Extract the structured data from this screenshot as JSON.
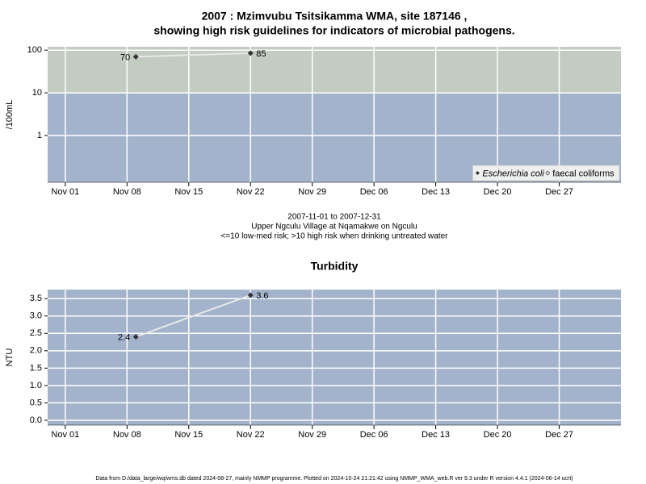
{
  "chart_data": [
    {
      "type": "line",
      "title": "2007 : Mzimvubu Tsitsikamma WMA, site 187146 ,",
      "subtitle": "showing high risk guidelines for indicators of microbial pathogens.",
      "ylabel": "/100mL",
      "notes": [
        "2007-11-01 to 2007-12-31",
        "Upper Ngculu Village at Nqamakwe on Ngculu",
        "<=10 low-med risk; >10 high risk when drinking untreated water"
      ],
      "x": [
        "2007-11-09",
        "2007-11-22"
      ],
      "series": [
        {
          "name": "Escherichia coli",
          "color": "#333333",
          "line_color": "#e8e8e8",
          "values": [
            70,
            85
          ]
        },
        {
          "name": "faecal coliforms",
          "color": "#333333",
          "line_color": "#e8e8e8",
          "values": [
            null,
            null
          ]
        }
      ],
      "log_y": true,
      "ylim": [
        0.08,
        120
      ],
      "yticks": [
        1,
        10,
        100
      ],
      "threshold": 10,
      "background": "#a3b3cc",
      "high_risk_color": "#c2ccc0",
      "xlim": [
        "2007-10-30",
        "2008-01-03"
      ],
      "xticks": [
        {
          "value": "2007-11-01",
          "label": "Nov 01"
        },
        {
          "value": "2007-11-08",
          "label": "Nov 08"
        },
        {
          "value": "2007-11-15",
          "label": "Nov 15"
        },
        {
          "value": "2007-11-22",
          "label": "Nov 22"
        },
        {
          "value": "2007-11-29",
          "label": "Nov 29"
        },
        {
          "value": "2007-12-06",
          "label": "Dec 06"
        },
        {
          "value": "2007-12-13",
          "label": "Dec 13"
        },
        {
          "value": "2007-12-20",
          "label": "Dec 20"
        },
        {
          "value": "2007-12-27",
          "label": "Dec 27"
        }
      ],
      "grid": true,
      "legend": "lower right"
    },
    {
      "type": "line",
      "title": "Turbidity",
      "ylabel": "NTU",
      "x": [
        "2007-11-09",
        "2007-11-22"
      ],
      "series": [
        {
          "name": "Turbidity",
          "color": "#333333",
          "line_color": "#e8e8e8",
          "values": [
            2.4,
            3.6
          ]
        }
      ],
      "log_y": false,
      "ylim": [
        -0.14,
        3.76
      ],
      "yticks": [
        {
          "value": 0,
          "label": "0.0"
        },
        0.5,
        {
          "value": 1,
          "label": "1.0"
        },
        1.5,
        {
          "value": 2,
          "label": "2.0"
        },
        2.5,
        {
          "value": 3,
          "label": "3.0"
        },
        3.5
      ],
      "background": "#a3b3cc",
      "xlim": [
        "2007-10-30",
        "2008-01-03"
      ],
      "xticks": [
        {
          "value": "2007-11-01",
          "label": "Nov 01"
        },
        {
          "value": "2007-11-08",
          "label": "Nov 08"
        },
        {
          "value": "2007-11-15",
          "label": "Nov 15"
        },
        {
          "value": "2007-11-22",
          "label": "Nov 22"
        },
        {
          "value": "2007-11-29",
          "label": "Nov 29"
        },
        {
          "value": "2007-12-06",
          "label": "Dec 06"
        },
        {
          "value": "2007-12-13",
          "label": "Dec 13"
        },
        {
          "value": "2007-12-20",
          "label": "Dec 20"
        },
        {
          "value": "2007-12-27",
          "label": "Dec 27"
        }
      ],
      "grid": true
    }
  ],
  "footer": "Data from D:/data_large/wq/wms.db dated 2024-08-27, mainly NMMP programme. Plotted on 2024-10-24 21:21:42 using NMMP_WMA_web.R ver 9.3 under R version 4.4.1 (2024-06-14 ucrt)"
}
